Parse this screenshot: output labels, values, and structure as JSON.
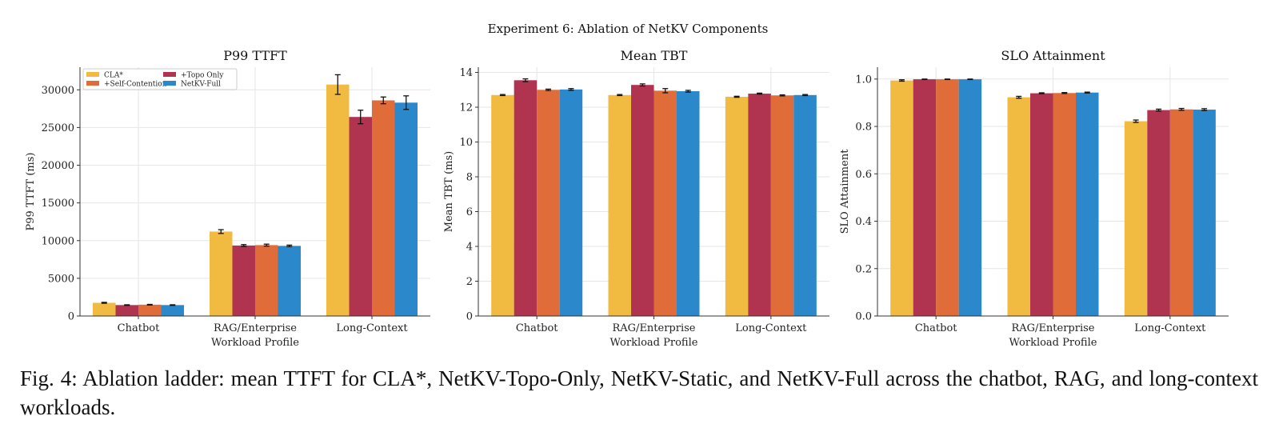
{
  "figure": {
    "suptitle": "Experiment 6: Ablation of NetKV Components",
    "caption": "Fig. 4: Ablation ladder: mean TTFT for CLA*, NetKV-Topo-Only, NetKV-Static, and NetKV-Full across the chatbot, RAG, and long-context workloads."
  },
  "colors": {
    "CLA*": "#f0bb40",
    "+Topo Only": "#b0344f",
    "+Self-Contention": "#e06c3a",
    "NetKV-Full": "#2a88cb"
  },
  "chart_data": [
    {
      "type": "bar",
      "title": "P99 TTFT",
      "xlabel": "Workload Profile",
      "ylabel": "P99 TTFT (ms)",
      "categories": [
        "Chatbot",
        "RAG/Enterprise",
        "Long-Context"
      ],
      "ylim": [
        0,
        33000
      ],
      "yticks": [
        0,
        5000,
        10000,
        15000,
        20000,
        25000,
        30000
      ],
      "tick_labels": [
        "0",
        "5000",
        "10000",
        "15000",
        "20000",
        "25000",
        "30000"
      ],
      "grid": true,
      "legend": "upper-left",
      "series": [
        {
          "name": "CLA*",
          "values": [
            1750,
            11200,
            30700
          ],
          "errors": [
            60,
            250,
            1300
          ]
        },
        {
          "name": "+Topo Only",
          "values": [
            1450,
            9350,
            26400
          ],
          "errors": [
            40,
            120,
            900
          ]
        },
        {
          "name": "+Self-Contention",
          "values": [
            1500,
            9400,
            28600
          ],
          "errors": [
            40,
            130,
            450
          ]
        },
        {
          "name": "NetKV-Full",
          "values": [
            1450,
            9300,
            28300
          ],
          "errors": [
            40,
            100,
            900
          ]
        }
      ]
    },
    {
      "type": "bar",
      "title": "Mean TBT",
      "xlabel": "Workload Profile",
      "ylabel": "Mean TBT (ms)",
      "categories": [
        "Chatbot",
        "RAG/Enterprise",
        "Long-Context"
      ],
      "ylim": [
        0,
        14.3
      ],
      "yticks": [
        0,
        2,
        4,
        6,
        8,
        10,
        12,
        14
      ],
      "tick_labels": [
        "0",
        "2",
        "4",
        "6",
        "8",
        "10",
        "12",
        "14"
      ],
      "grid": true,
      "series": [
        {
          "name": "CLA*",
          "values": [
            12.7,
            12.7,
            12.6
          ],
          "errors": [
            0.03,
            0.03,
            0.03
          ]
        },
        {
          "name": "+Topo Only",
          "values": [
            13.55,
            13.28,
            12.78
          ],
          "errors": [
            0.08,
            0.06,
            0.03
          ]
        },
        {
          "name": "+Self-Contention",
          "values": [
            13.0,
            12.95,
            12.68
          ],
          "errors": [
            0.04,
            0.12,
            0.03
          ]
        },
        {
          "name": "NetKV-Full",
          "values": [
            13.02,
            12.92,
            12.7
          ],
          "errors": [
            0.05,
            0.05,
            0.03
          ]
        }
      ]
    },
    {
      "type": "bar",
      "title": "SLO Attainment",
      "xlabel": "Workload Profile",
      "ylabel": "SLO Attainment",
      "categories": [
        "Chatbot",
        "RAG/Enterprise",
        "Long-Context"
      ],
      "ylim": [
        0,
        1.05
      ],
      "yticks": [
        0,
        0.2,
        0.4,
        0.6,
        0.8,
        1.0
      ],
      "tick_labels": [
        "0.0",
        "0.2",
        "0.4",
        "0.6",
        "0.8",
        "1.0"
      ],
      "grid": true,
      "series": [
        {
          "name": "CLA*",
          "values": [
            0.994,
            0.923,
            0.822
          ],
          "errors": [
            0.003,
            0.004,
            0.005
          ]
        },
        {
          "name": "+Topo Only",
          "values": [
            0.999,
            0.94,
            0.869
          ],
          "errors": [
            0.001,
            0.002,
            0.004
          ]
        },
        {
          "name": "+Self-Contention",
          "values": [
            0.999,
            0.941,
            0.872
          ],
          "errors": [
            0.001,
            0.002,
            0.004
          ]
        },
        {
          "name": "NetKV-Full",
          "values": [
            0.999,
            0.943,
            0.871
          ],
          "errors": [
            0.001,
            0.002,
            0.004
          ]
        }
      ]
    }
  ]
}
